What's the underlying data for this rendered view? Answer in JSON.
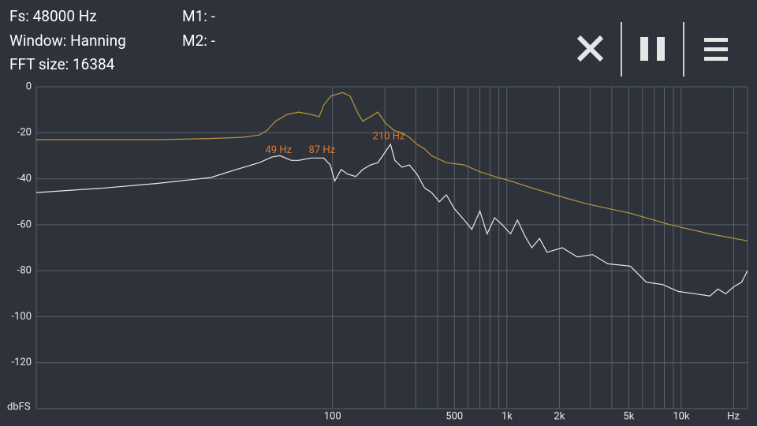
{
  "header": {
    "fs": "Fs: 48000 Hz",
    "window": "Window: Hanning",
    "fft_size": "FFT size: 16384",
    "m1": "M1: -",
    "m2": "M2: -"
  },
  "chart_data": {
    "type": "line",
    "xlabel": "Hz",
    "ylabel": "dbFS",
    "log_x": true,
    "grid": true,
    "xlim": [
      2,
      24000
    ],
    "ylim": [
      -140,
      0
    ],
    "xticks": [
      100,
      500,
      {
        "value": 1000,
        "label": "1k"
      },
      {
        "value": 2000,
        "label": "2k"
      },
      {
        "value": 5000,
        "label": "5k"
      },
      {
        "value": 10000,
        "label": "10k"
      }
    ],
    "xminor": [
      200,
      300,
      400,
      600,
      700,
      800,
      900,
      3000,
      4000,
      6000,
      7000,
      8000,
      9000,
      20000
    ],
    "yticks": [
      0,
      -20,
      -40,
      -60,
      -80,
      -100,
      -120
    ],
    "series": [
      {
        "color": "#b8963a",
        "x": [
          2,
          5,
          10,
          20,
          30,
          38,
          42,
          47,
          55,
          64,
          75,
          84,
          89,
          98,
          114,
          126,
          141,
          149,
          165,
          182,
          202,
          226,
          250,
          276,
          305,
          337,
          370,
          450,
          570,
          700,
          850,
          1050,
          1390,
          1880,
          2890,
          5100,
          8650,
          14600,
          24000
        ],
        "values": [
          -23,
          -23,
          -23,
          -22.5,
          -22,
          -21,
          -19,
          -15,
          -12,
          -11,
          -12,
          -13,
          -8,
          -4,
          -2.5,
          -4,
          -12,
          -15,
          -13,
          -11,
          -16,
          -19,
          -20,
          -22,
          -25,
          -27,
          -30,
          -33,
          -34,
          -37,
          -39,
          -41,
          -44,
          -47,
          -51,
          -55,
          -60,
          -64,
          -67
        ]
      },
      {
        "color": "#e8e8e8",
        "x": [
          2,
          5,
          10,
          20,
          28,
          38,
          45,
          50,
          58,
          64,
          75,
          89,
          97,
          103,
          112,
          122,
          136,
          149,
          165,
          182,
          202,
          215,
          228,
          250,
          276,
          305,
          337,
          370,
          410,
          450,
          500,
          570,
          630,
          700,
          770,
          850,
          940,
          1050,
          1150,
          1270,
          1390,
          1540,
          1700,
          2080,
          2540,
          3100,
          3790,
          5100,
          6300,
          7800,
          9600,
          11900,
          14600,
          16200,
          18000,
          20000,
          22200,
          24000
        ],
        "values": [
          -46,
          -44,
          -42,
          -39.5,
          -36,
          -33,
          -30.5,
          -30,
          -32,
          -32,
          -31,
          -31,
          -34,
          -41,
          -36,
          -38,
          -39,
          -36,
          -34,
          -33,
          -28,
          -25,
          -32,
          -35,
          -34,
          -38,
          -44,
          -46,
          -50,
          -47,
          -53,
          -58,
          -62,
          -54,
          -64,
          -57,
          -60,
          -64,
          -58,
          -65,
          -70,
          -66,
          -72,
          -70,
          -74,
          -73,
          -77,
          -78,
          -85,
          -86,
          -89,
          -90,
          -91,
          -88,
          -90,
          -87,
          -85,
          -80
        ]
      }
    ],
    "annotations": [
      {
        "text": "49 Hz",
        "x": 49,
        "y": -31
      },
      {
        "text": "87 Hz",
        "x": 87,
        "y": -31
      },
      {
        "text": "210 Hz",
        "x": 210,
        "y": -25
      }
    ]
  }
}
